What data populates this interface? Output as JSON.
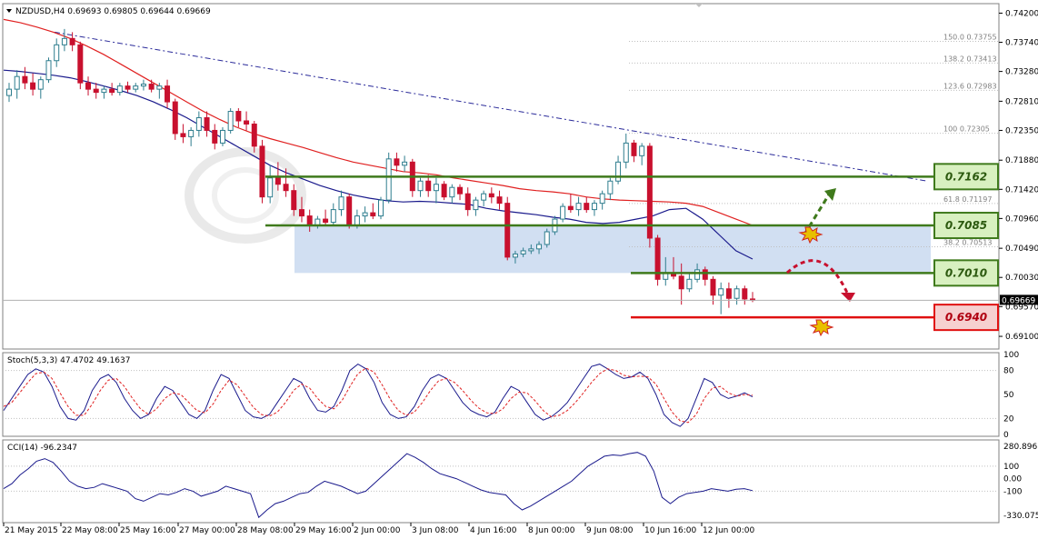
{
  "header": {
    "symbol_text": "NZDUSD,H4  0.69693 0.69805 0.69644 0.69669",
    "stoch_label": "Stoch(5,3,3) 47.4702 49.1637",
    "cci_label": "CCI(14) -96.2347",
    "current_price_badge": "0.69669"
  },
  "colors": {
    "bull_candle": "#2e7d8e",
    "bear_candle": "#c8102e",
    "ma_fast": "#1a1a8c",
    "ma_slow": "#e02020",
    "support_resistance": "#3f7a1c",
    "target_low": "#e01010",
    "zone_fill": "#c9d9f0",
    "watermark": "#d8d8d8"
  },
  "chart_data": [
    {
      "type": "candlestick",
      "title": "NZDUSD,H4",
      "ylim": [
        0.689,
        0.7435
      ],
      "y_ticks": [
        "0.74200",
        "0.73740",
        "0.73280",
        "0.72810",
        "0.72350",
        "0.71880",
        "0.71420",
        "0.70960",
        "0.70490",
        "0.70030",
        "0.69570",
        "0.69100"
      ],
      "x_ticks": [
        "21 May 2015",
        "22 May 08:00",
        "25 May 16:00",
        "27 May 00:00",
        "28 May 08:00",
        "29 May 16:00",
        "2 Jun 00:00",
        "3 Jun 08:00",
        "4 Jun 16:00",
        "8 Jun 00:00",
        "9 Jun 08:00",
        "10 Jun 16:00",
        "12 Jun 00:00"
      ],
      "candles": [
        [
          0.729,
          0.731,
          0.728,
          0.73
        ],
        [
          0.73,
          0.733,
          0.7285,
          0.732
        ],
        [
          0.732,
          0.7335,
          0.73,
          0.731
        ],
        [
          0.731,
          0.7325,
          0.729,
          0.73
        ],
        [
          0.73,
          0.732,
          0.7285,
          0.7315
        ],
        [
          0.7315,
          0.735,
          0.731,
          0.7345
        ],
        [
          0.7345,
          0.738,
          0.7335,
          0.737
        ],
        [
          0.737,
          0.7395,
          0.736,
          0.738
        ],
        [
          0.738,
          0.739,
          0.736,
          0.737
        ],
        [
          0.737,
          0.7375,
          0.73,
          0.731
        ],
        [
          0.731,
          0.732,
          0.729,
          0.73
        ],
        [
          0.73,
          0.731,
          0.7285,
          0.7295
        ],
        [
          0.7295,
          0.7305,
          0.7285,
          0.73
        ],
        [
          0.73,
          0.731,
          0.729,
          0.7295
        ],
        [
          0.7295,
          0.731,
          0.729,
          0.7305
        ],
        [
          0.7305,
          0.7312,
          0.7295,
          0.73
        ],
        [
          0.73,
          0.731,
          0.7295,
          0.7305
        ],
        [
          0.7305,
          0.7315,
          0.7298,
          0.7308
        ],
        [
          0.7308,
          0.7315,
          0.7295,
          0.73
        ],
        [
          0.73,
          0.731,
          0.7285,
          0.7305
        ],
        [
          0.7305,
          0.7315,
          0.727,
          0.728
        ],
        [
          0.728,
          0.7285,
          0.722,
          0.723
        ],
        [
          0.723,
          0.7245,
          0.7215,
          0.7225
        ],
        [
          0.7225,
          0.724,
          0.721,
          0.7235
        ],
        [
          0.7235,
          0.7265,
          0.7225,
          0.7255
        ],
        [
          0.7255,
          0.7265,
          0.7225,
          0.7235
        ],
        [
          0.7235,
          0.7245,
          0.7205,
          0.7215
        ],
        [
          0.7215,
          0.724,
          0.721,
          0.7235
        ],
        [
          0.7235,
          0.727,
          0.723,
          0.7265
        ],
        [
          0.7265,
          0.727,
          0.724,
          0.725
        ],
        [
          0.725,
          0.7265,
          0.7235,
          0.7245
        ],
        [
          0.7245,
          0.725,
          0.72,
          0.721
        ],
        [
          0.721,
          0.722,
          0.712,
          0.713
        ],
        [
          0.713,
          0.718,
          0.712,
          0.716
        ],
        [
          0.716,
          0.7185,
          0.714,
          0.715
        ],
        [
          0.715,
          0.7175,
          0.713,
          0.714
        ],
        [
          0.714,
          0.715,
          0.71,
          0.711
        ],
        [
          0.711,
          0.713,
          0.709,
          0.71
        ],
        [
          0.71,
          0.711,
          0.7075,
          0.7085
        ],
        [
          0.7085,
          0.71,
          0.708,
          0.7095
        ],
        [
          0.7095,
          0.711,
          0.7085,
          0.709
        ],
        [
          0.709,
          0.712,
          0.7085,
          0.711
        ],
        [
          0.711,
          0.714,
          0.71,
          0.713
        ],
        [
          0.713,
          0.7135,
          0.708,
          0.7085
        ],
        [
          0.7085,
          0.711,
          0.708,
          0.71
        ],
        [
          0.71,
          0.7115,
          0.709,
          0.7105
        ],
        [
          0.7105,
          0.712,
          0.7095,
          0.71
        ],
        [
          0.71,
          0.713,
          0.7095,
          0.7125
        ],
        [
          0.7125,
          0.72,
          0.712,
          0.719
        ],
        [
          0.719,
          0.72,
          0.717,
          0.718
        ],
        [
          0.718,
          0.7195,
          0.717,
          0.7185
        ],
        [
          0.7185,
          0.719,
          0.713,
          0.714
        ],
        [
          0.714,
          0.716,
          0.713,
          0.7155
        ],
        [
          0.7155,
          0.7165,
          0.713,
          0.714
        ],
        [
          0.714,
          0.716,
          0.712,
          0.715
        ],
        [
          0.715,
          0.7155,
          0.7125,
          0.713
        ],
        [
          0.713,
          0.715,
          0.712,
          0.7145
        ],
        [
          0.7145,
          0.715,
          0.7125,
          0.7135
        ],
        [
          0.7135,
          0.7145,
          0.71,
          0.711
        ],
        [
          0.711,
          0.713,
          0.71,
          0.7125
        ],
        [
          0.7125,
          0.714,
          0.7115,
          0.7135
        ],
        [
          0.7135,
          0.7145,
          0.712,
          0.713
        ],
        [
          0.713,
          0.714,
          0.711,
          0.712
        ],
        [
          0.712,
          0.713,
          0.703,
          0.7035
        ],
        [
          0.7035,
          0.7045,
          0.7025,
          0.704
        ],
        [
          0.704,
          0.705,
          0.7035,
          0.7045
        ],
        [
          0.7045,
          0.7055,
          0.704,
          0.7048
        ],
        [
          0.7048,
          0.706,
          0.704,
          0.7055
        ],
        [
          0.7055,
          0.708,
          0.705,
          0.7075
        ],
        [
          0.7075,
          0.71,
          0.707,
          0.7095
        ],
        [
          0.7095,
          0.712,
          0.709,
          0.7115
        ],
        [
          0.7115,
          0.7135,
          0.7105,
          0.711
        ],
        [
          0.711,
          0.713,
          0.71,
          0.712
        ],
        [
          0.712,
          0.713,
          0.7105,
          0.711
        ],
        [
          0.711,
          0.7125,
          0.71,
          0.712
        ],
        [
          0.712,
          0.714,
          0.711,
          0.7135
        ],
        [
          0.7135,
          0.716,
          0.7125,
          0.7155
        ],
        [
          0.7155,
          0.7195,
          0.715,
          0.7185
        ],
        [
          0.7185,
          0.723,
          0.7175,
          0.7215
        ],
        [
          0.7215,
          0.722,
          0.7185,
          0.7195
        ],
        [
          0.7195,
          0.7215,
          0.718,
          0.721
        ],
        [
          0.721,
          0.7215,
          0.705,
          0.7065
        ],
        [
          0.7065,
          0.707,
          0.699,
          0.7
        ],
        [
          0.7,
          0.7035,
          0.699,
          0.701
        ],
        [
          0.701,
          0.7035,
          0.7,
          0.7005
        ],
        [
          0.7005,
          0.7025,
          0.696,
          0.6985
        ],
        [
          0.6985,
          0.701,
          0.698,
          0.7
        ],
        [
          0.7,
          0.7025,
          0.6995,
          0.7015
        ],
        [
          0.7015,
          0.702,
          0.699,
          0.7
        ],
        [
          0.7,
          0.7005,
          0.696,
          0.6975
        ],
        [
          0.6975,
          0.6995,
          0.6945,
          0.6985
        ],
        [
          0.6985,
          0.6995,
          0.6955,
          0.697
        ],
        [
          0.697,
          0.699,
          0.696,
          0.6985
        ],
        [
          0.6985,
          0.699,
          0.696,
          0.6969
        ],
        [
          0.6969,
          0.698,
          0.6964,
          0.6967
        ]
      ],
      "ma_fast": [
        0.733,
        0.7328,
        0.7325,
        0.7322,
        0.7318,
        0.7312,
        0.7305,
        0.7298,
        0.729,
        0.728,
        0.7268,
        0.7255,
        0.724,
        0.7225,
        0.721,
        0.7195,
        0.718,
        0.7168,
        0.7158,
        0.7148,
        0.714,
        0.7133,
        0.7128,
        0.7124,
        0.7122,
        0.7123,
        0.7122,
        0.712,
        0.7118,
        0.7112,
        0.7108,
        0.7105,
        0.7102,
        0.7098,
        0.7095,
        0.709,
        0.7088,
        0.709,
        0.7095,
        0.71,
        0.711,
        0.7112,
        0.7095,
        0.707,
        0.7045,
        0.7032
      ],
      "ma_slow": [
        0.741,
        0.7405,
        0.7398,
        0.739,
        0.738,
        0.7368,
        0.7355,
        0.734,
        0.7325,
        0.731,
        0.7295,
        0.728,
        0.7265,
        0.7252,
        0.724,
        0.723,
        0.7222,
        0.7215,
        0.7208,
        0.72,
        0.7192,
        0.7185,
        0.718,
        0.7175,
        0.717,
        0.7168,
        0.7165,
        0.716,
        0.7156,
        0.7152,
        0.7148,
        0.7143,
        0.714,
        0.7138,
        0.7135,
        0.713,
        0.7127,
        0.7125,
        0.7124,
        0.7123,
        0.7122,
        0.712,
        0.7115,
        0.7105,
        0.7095,
        0.7085
      ],
      "trendline": {
        "from": 0.739,
        "to": 0.7155
      },
      "fibonacci": [
        {
          "label": "150.0  0.73755",
          "value": 0.73755
        },
        {
          "label": "138.2  0.73413",
          "value": 0.73413
        },
        {
          "label": "123.6  0.72983",
          "value": 0.72983
        },
        {
          "label": "100  0.72305",
          "value": 0.72305
        },
        {
          "label": "61.8  0.71197",
          "value": 0.71197
        },
        {
          "label": "38.2  0.70513",
          "value": 0.70513
        }
      ],
      "levels": [
        {
          "label": "0.7162",
          "value": 0.7162,
          "style": "resistance"
        },
        {
          "label": "0.7085",
          "value": 0.7085,
          "style": "resistance"
        },
        {
          "label": "0.7010",
          "value": 0.701,
          "style": "support"
        },
        {
          "label": "0.6940",
          "value": 0.694,
          "style": "target"
        }
      ],
      "zone": {
        "top": 0.7085,
        "bottom": 0.701
      },
      "current_price": 0.69669
    },
    {
      "type": "line",
      "title": "Stoch(5,3,3) 47.4702 49.1637",
      "ylim": [
        0,
        100
      ],
      "y_ticks": [
        "100",
        "80",
        "50",
        "20",
        "0"
      ],
      "series": [
        {
          "values": [
            30,
            45,
            60,
            75,
            82,
            78,
            60,
            35,
            20,
            18,
            30,
            55,
            70,
            75,
            65,
            45,
            30,
            20,
            25,
            45,
            60,
            55,
            40,
            25,
            20,
            30,
            55,
            75,
            70,
            50,
            30,
            22,
            20,
            25,
            40,
            55,
            70,
            65,
            45,
            30,
            28,
            35,
            55,
            80,
            88,
            82,
            65,
            40,
            25,
            20,
            22,
            35,
            55,
            70,
            75,
            70,
            55,
            40,
            30,
            25,
            22,
            28,
            45,
            60,
            55,
            40,
            25,
            18,
            22,
            30,
            40,
            55,
            70,
            85,
            88,
            82,
            75,
            70,
            72,
            78,
            70,
            50,
            25,
            15,
            10,
            20,
            45,
            70,
            65,
            50,
            45,
            48,
            52,
            47
          ]
        },
        {
          "values": [
            35,
            40,
            52,
            65,
            76,
            78,
            70,
            52,
            35,
            24,
            24,
            38,
            55,
            68,
            70,
            60,
            45,
            32,
            25,
            32,
            45,
            52,
            50,
            40,
            30,
            27,
            38,
            55,
            68,
            62,
            48,
            34,
            25,
            23,
            28,
            40,
            55,
            63,
            58,
            45,
            35,
            32,
            42,
            60,
            76,
            83,
            78,
            62,
            44,
            30,
            24,
            28,
            40,
            55,
            67,
            70,
            65,
            55,
            43,
            33,
            27,
            26,
            32,
            45,
            53,
            52,
            42,
            30,
            22,
            24,
            30,
            40,
            52,
            65,
            76,
            82,
            80,
            74,
            72,
            73,
            72,
            63,
            45,
            28,
            17,
            15,
            25,
            45,
            58,
            60,
            52,
            48,
            50,
            49
          ]
        }
      ]
    },
    {
      "type": "line",
      "title": "CCI(14) -96.2347",
      "ylim": [
        -330.0754,
        280.8961
      ],
      "y_ticks": [
        "280.8961",
        "100",
        "0.00",
        "-100",
        "-330.0754"
      ],
      "series": [
        {
          "values": [
            -80,
            -40,
            30,
            80,
            140,
            160,
            130,
            60,
            -20,
            -60,
            -80,
            -70,
            -40,
            -60,
            -80,
            -100,
            -160,
            -180,
            -150,
            -120,
            -130,
            -110,
            -80,
            -100,
            -140,
            -120,
            -100,
            -60,
            -80,
            -100,
            -120,
            -310,
            -250,
            -200,
            -180,
            -150,
            -120,
            -110,
            -60,
            -20,
            -40,
            -60,
            -90,
            -120,
            -100,
            -40,
            20,
            80,
            140,
            200,
            170,
            130,
            80,
            40,
            20,
            0,
            -30,
            -60,
            -90,
            -110,
            -120,
            -130,
            -200,
            -250,
            -220,
            -180,
            -140,
            -100,
            -60,
            -20,
            40,
            100,
            140,
            180,
            190,
            185,
            200,
            210,
            180,
            60,
            -150,
            -200,
            -150,
            -120,
            -110,
            -100,
            -80,
            -90,
            -100,
            -85,
            -80,
            -96
          ]
        }
      ]
    }
  ]
}
